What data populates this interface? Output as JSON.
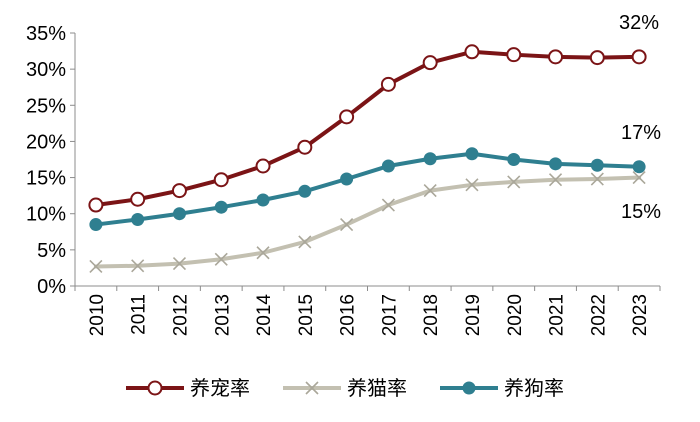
{
  "chart_data": {
    "type": "line",
    "title": "",
    "xlabel": "",
    "ylabel": "",
    "categories": [
      "2010",
      "2011",
      "2012",
      "2013",
      "2014",
      "2015",
      "2016",
      "2017",
      "2018",
      "2019",
      "2020",
      "2021",
      "2022",
      "2023"
    ],
    "ylim": [
      0,
      35
    ],
    "yticks": [
      0,
      5,
      10,
      15,
      20,
      25,
      30,
      35
    ],
    "ytick_labels": [
      "0%",
      "5%",
      "10%",
      "15%",
      "20%",
      "25%",
      "30%",
      "35%"
    ],
    "legend_position": "bottom",
    "grid": false,
    "series": [
      {
        "name": "养宠率",
        "color": "#7b1416",
        "marker": "open-circle",
        "values": [
          11.2,
          12.0,
          13.2,
          14.7,
          16.6,
          19.2,
          23.4,
          27.9,
          30.9,
          32.4,
          32.0,
          31.7,
          31.6,
          31.7
        ]
      },
      {
        "name": "养猫率",
        "color": "#c3c0b1",
        "marker": "x",
        "values": [
          2.7,
          2.8,
          3.1,
          3.7,
          4.6,
          6.1,
          8.5,
          11.2,
          13.2,
          14.0,
          14.4,
          14.7,
          14.8,
          15.0
        ]
      },
      {
        "name": "养狗率",
        "color": "#2f7f90",
        "marker": "filled-circle",
        "values": [
          8.5,
          9.2,
          10.0,
          10.9,
          11.9,
          13.1,
          14.8,
          16.6,
          17.6,
          18.3,
          17.5,
          16.9,
          16.7,
          16.5
        ]
      }
    ],
    "annotations": [
      {
        "text": "32%",
        "series": 0
      },
      {
        "text": "17%",
        "series": 2
      },
      {
        "text": "15%",
        "series": 1
      }
    ]
  }
}
